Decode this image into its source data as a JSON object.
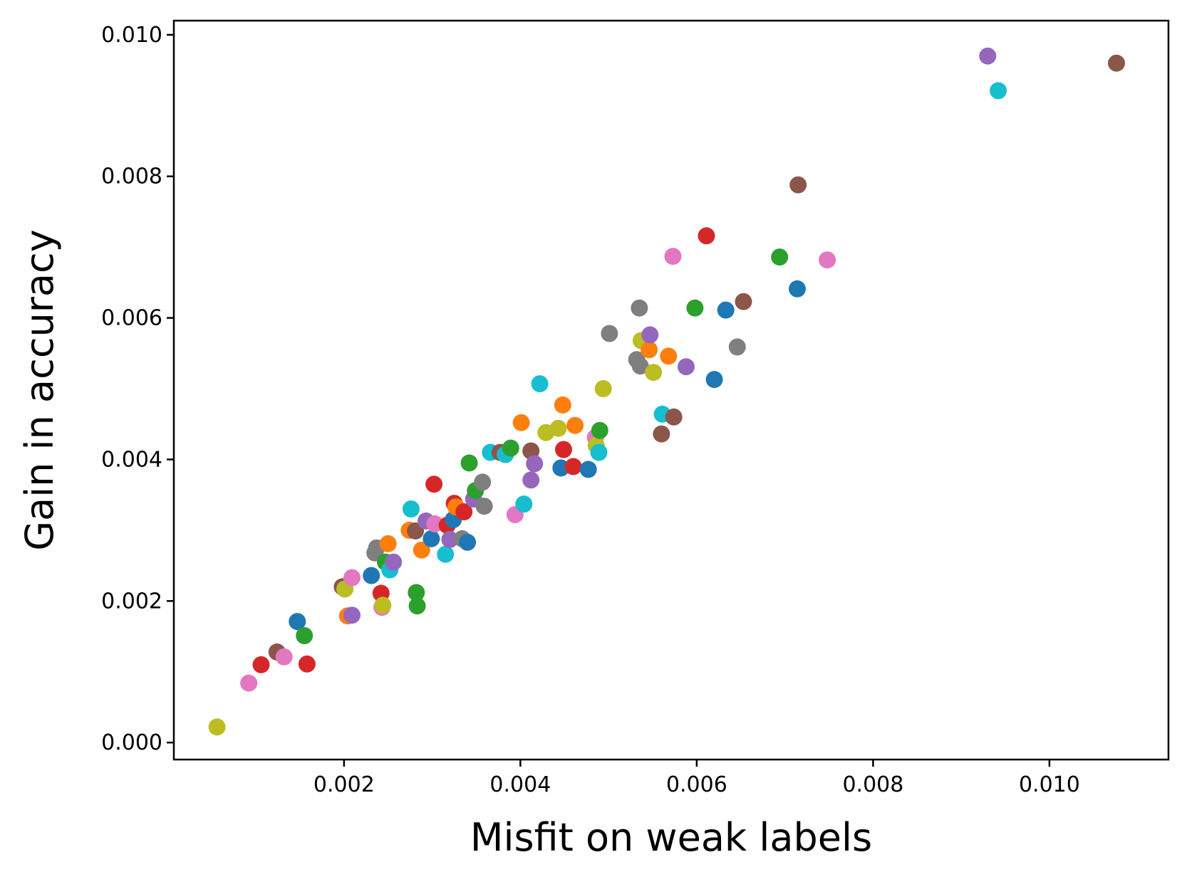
{
  "chart_data": {
    "type": "scatter",
    "title": "",
    "xlabel": "Misfit on weak labels",
    "ylabel": "Gain in accuracy",
    "xlim": [
      7e-05,
      0.01135
    ],
    "ylim": [
      -0.00024,
      0.0102
    ],
    "xticks": [
      0.002,
      0.004,
      0.006,
      0.008,
      0.01
    ],
    "xtick_labels": [
      "0.002",
      "0.004",
      "0.006",
      "0.008",
      "0.010"
    ],
    "yticks": [
      0.0,
      0.002,
      0.004,
      0.006,
      0.008,
      0.01
    ],
    "ytick_labels": [
      "0.000",
      "0.002",
      "0.004",
      "0.006",
      "0.008",
      "0.010"
    ],
    "grid": false,
    "legend": "none",
    "colors": {
      "blue": "#1f77b4",
      "orange": "#ff7f0e",
      "green": "#2ca02c",
      "red": "#d62728",
      "purple": "#9467bd",
      "brown": "#8c564b",
      "pink": "#e377c2",
      "gray": "#7f7f7f",
      "olive": "#bcbd22",
      "cyan": "#17becf"
    },
    "points": [
      {
        "x": 0.00056,
        "y": 0.00022,
        "c": "olive"
      },
      {
        "x": 0.00092,
        "y": 0.00084,
        "c": "pink"
      },
      {
        "x": 0.00106,
        "y": 0.0011,
        "c": "red"
      },
      {
        "x": 0.00124,
        "y": 0.00128,
        "c": "brown"
      },
      {
        "x": 0.00132,
        "y": 0.00121,
        "c": "pink"
      },
      {
        "x": 0.00147,
        "y": 0.00171,
        "c": "blue"
      },
      {
        "x": 0.00155,
        "y": 0.00151,
        "c": "green"
      },
      {
        "x": 0.00158,
        "y": 0.00111,
        "c": "red"
      },
      {
        "x": 0.00198,
        "y": 0.0022,
        "c": "brown"
      },
      {
        "x": 0.00201,
        "y": 0.00217,
        "c": "olive"
      },
      {
        "x": 0.00204,
        "y": 0.00179,
        "c": "orange"
      },
      {
        "x": 0.00209,
        "y": 0.0018,
        "c": "purple"
      },
      {
        "x": 0.00209,
        "y": 0.00233,
        "c": "pink"
      },
      {
        "x": 0.00231,
        "y": 0.00236,
        "c": "blue"
      },
      {
        "x": 0.00235,
        "y": 0.00268,
        "c": "gray"
      },
      {
        "x": 0.00237,
        "y": 0.00275,
        "c": "gray"
      },
      {
        "x": 0.00242,
        "y": 0.00211,
        "c": "red"
      },
      {
        "x": 0.00243,
        "y": 0.00191,
        "c": "pink"
      },
      {
        "x": 0.00244,
        "y": 0.00194,
        "c": "olive"
      },
      {
        "x": 0.00247,
        "y": 0.00255,
        "c": "green"
      },
      {
        "x": 0.0025,
        "y": 0.00281,
        "c": "orange"
      },
      {
        "x": 0.00252,
        "y": 0.00244,
        "c": "cyan"
      },
      {
        "x": 0.00256,
        "y": 0.00255,
        "c": "purple"
      },
      {
        "x": 0.00274,
        "y": 0.003,
        "c": "orange"
      },
      {
        "x": 0.00276,
        "y": 0.0033,
        "c": "cyan"
      },
      {
        "x": 0.00281,
        "y": 0.00299,
        "c": "brown"
      },
      {
        "x": 0.00282,
        "y": 0.00212,
        "c": "green"
      },
      {
        "x": 0.00283,
        "y": 0.00193,
        "c": "green"
      },
      {
        "x": 0.00288,
        "y": 0.00272,
        "c": "orange"
      },
      {
        "x": 0.00293,
        "y": 0.00313,
        "c": "purple"
      },
      {
        "x": 0.00299,
        "y": 0.00288,
        "c": "blue"
      },
      {
        "x": 0.00302,
        "y": 0.00365,
        "c": "red"
      },
      {
        "x": 0.00303,
        "y": 0.00309,
        "c": "pink"
      },
      {
        "x": 0.00315,
        "y": 0.00266,
        "c": "cyan"
      },
      {
        "x": 0.00317,
        "y": 0.00307,
        "c": "red"
      },
      {
        "x": 0.0032,
        "y": 0.00287,
        "c": "purple"
      },
      {
        "x": 0.00324,
        "y": 0.00315,
        "c": "blue"
      },
      {
        "x": 0.00325,
        "y": 0.00338,
        "c": "red"
      },
      {
        "x": 0.00327,
        "y": 0.00333,
        "c": "orange"
      },
      {
        "x": 0.00334,
        "y": 0.00288,
        "c": "gray"
      },
      {
        "x": 0.00336,
        "y": 0.00326,
        "c": "red"
      },
      {
        "x": 0.0034,
        "y": 0.00283,
        "c": "blue"
      },
      {
        "x": 0.00342,
        "y": 0.00395,
        "c": "green"
      },
      {
        "x": 0.00347,
        "y": 0.00344,
        "c": "purple"
      },
      {
        "x": 0.00349,
        "y": 0.00356,
        "c": "green"
      },
      {
        "x": 0.00357,
        "y": 0.00368,
        "c": "gray"
      },
      {
        "x": 0.00359,
        "y": 0.00334,
        "c": "gray"
      },
      {
        "x": 0.00366,
        "y": 0.0041,
        "c": "cyan"
      },
      {
        "x": 0.00377,
        "y": 0.0041,
        "c": "brown"
      },
      {
        "x": 0.00383,
        "y": 0.00407,
        "c": "cyan"
      },
      {
        "x": 0.00389,
        "y": 0.00416,
        "c": "green"
      },
      {
        "x": 0.00394,
        "y": 0.00322,
        "c": "pink"
      },
      {
        "x": 0.00401,
        "y": 0.00452,
        "c": "orange"
      },
      {
        "x": 0.00404,
        "y": 0.00337,
        "c": "cyan"
      },
      {
        "x": 0.00412,
        "y": 0.00412,
        "c": "brown"
      },
      {
        "x": 0.00412,
        "y": 0.00371,
        "c": "purple"
      },
      {
        "x": 0.00416,
        "y": 0.00394,
        "c": "purple"
      },
      {
        "x": 0.00422,
        "y": 0.00507,
        "c": "cyan"
      },
      {
        "x": 0.00429,
        "y": 0.00438,
        "c": "olive"
      },
      {
        "x": 0.00443,
        "y": 0.00444,
        "c": "olive"
      },
      {
        "x": 0.00446,
        "y": 0.00388,
        "c": "blue"
      },
      {
        "x": 0.00448,
        "y": 0.00477,
        "c": "orange"
      },
      {
        "x": 0.00449,
        "y": 0.00414,
        "c": "red"
      },
      {
        "x": 0.0046,
        "y": 0.0039,
        "c": "red"
      },
      {
        "x": 0.00462,
        "y": 0.00448,
        "c": "orange"
      },
      {
        "x": 0.00477,
        "y": 0.00386,
        "c": "blue"
      },
      {
        "x": 0.00485,
        "y": 0.00431,
        "c": "pink"
      },
      {
        "x": 0.00486,
        "y": 0.0042,
        "c": "olive"
      },
      {
        "x": 0.00489,
        "y": 0.0041,
        "c": "cyan"
      },
      {
        "x": 0.0049,
        "y": 0.00441,
        "c": "green"
      },
      {
        "x": 0.00494,
        "y": 0.005,
        "c": "olive"
      },
      {
        "x": 0.00501,
        "y": 0.00578,
        "c": "gray"
      },
      {
        "x": 0.00532,
        "y": 0.00541,
        "c": "gray"
      },
      {
        "x": 0.00535,
        "y": 0.00614,
        "c": "gray"
      },
      {
        "x": 0.00536,
        "y": 0.00532,
        "c": "gray"
      },
      {
        "x": 0.00537,
        "y": 0.00568,
        "c": "olive"
      },
      {
        "x": 0.00546,
        "y": 0.00555,
        "c": "orange"
      },
      {
        "x": 0.00547,
        "y": 0.00576,
        "c": "purple"
      },
      {
        "x": 0.00551,
        "y": 0.00523,
        "c": "olive"
      },
      {
        "x": 0.0056,
        "y": 0.00436,
        "c": "brown"
      },
      {
        "x": 0.00561,
        "y": 0.00464,
        "c": "cyan"
      },
      {
        "x": 0.00568,
        "y": 0.00546,
        "c": "orange"
      },
      {
        "x": 0.00573,
        "y": 0.00687,
        "c": "pink"
      },
      {
        "x": 0.00574,
        "y": 0.0046,
        "c": "brown"
      },
      {
        "x": 0.00588,
        "y": 0.00531,
        "c": "purple"
      },
      {
        "x": 0.00598,
        "y": 0.00614,
        "c": "green"
      },
      {
        "x": 0.00611,
        "y": 0.00716,
        "c": "red"
      },
      {
        "x": 0.0062,
        "y": 0.00513,
        "c": "blue"
      },
      {
        "x": 0.00633,
        "y": 0.00611,
        "c": "blue"
      },
      {
        "x": 0.00646,
        "y": 0.00559,
        "c": "gray"
      },
      {
        "x": 0.00653,
        "y": 0.00623,
        "c": "brown"
      },
      {
        "x": 0.00694,
        "y": 0.00686,
        "c": "green"
      },
      {
        "x": 0.00714,
        "y": 0.00641,
        "c": "blue"
      },
      {
        "x": 0.00715,
        "y": 0.00788,
        "c": "brown"
      },
      {
        "x": 0.00748,
        "y": 0.00682,
        "c": "pink"
      },
      {
        "x": 0.0093,
        "y": 0.0097,
        "c": "purple"
      },
      {
        "x": 0.00942,
        "y": 0.00921,
        "c": "cyan"
      },
      {
        "x": 0.01076,
        "y": 0.0096,
        "c": "brown"
      }
    ]
  }
}
